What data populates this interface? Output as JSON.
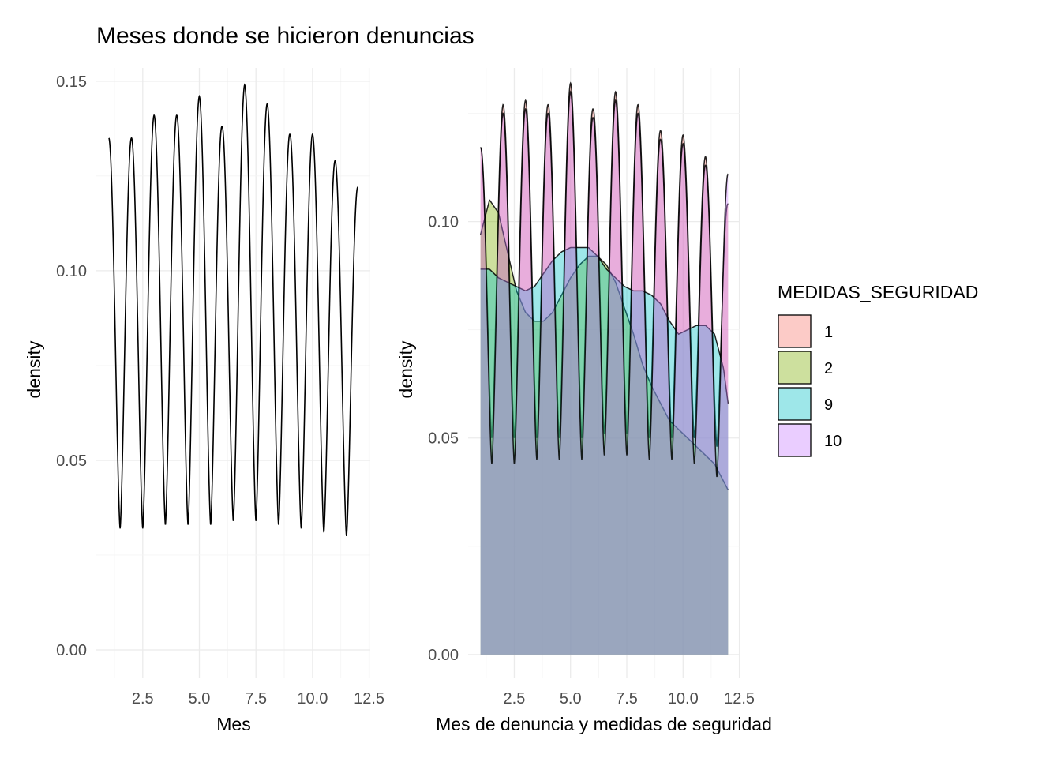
{
  "page": {
    "title": "Meses donde se hicieron denuncias"
  },
  "chart_data": [
    {
      "type": "line",
      "title": "Meses donde se hicieron denuncias",
      "xlabel": "Mes",
      "ylabel": "density",
      "xlim": [
        0.45,
        12.55
      ],
      "ylim": [
        -0.0075,
        0.1535
      ],
      "x_ticks": [
        2.5,
        5.0,
        7.5,
        10.0,
        12.5
      ],
      "x_tick_labels": [
        "2.5",
        "5.0",
        "7.5",
        "10.0",
        "12.5"
      ],
      "y_ticks": [
        0.0,
        0.05,
        0.1,
        0.15
      ],
      "y_tick_labels": [
        "0.00",
        "0.05",
        "0.10",
        "0.15"
      ],
      "grid": true,
      "series": [
        {
          "peaks_x": [
            1,
            2,
            3,
            4,
            5,
            6,
            7,
            8,
            9,
            10,
            11,
            12
          ],
          "peaks_y": [
            0.135,
            0.135,
            0.141,
            0.141,
            0.146,
            0.138,
            0.149,
            0.144,
            0.136,
            0.136,
            0.129,
            0.122
          ],
          "troughs_x": [
            1.5,
            2.5,
            3.5,
            4.5,
            5.5,
            6.5,
            7.5,
            8.5,
            9.5,
            10.5,
            11.5
          ],
          "troughs_y": [
            0.032,
            0.032,
            0.033,
            0.033,
            0.033,
            0.034,
            0.034,
            0.033,
            0.032,
            0.031,
            0.03
          ]
        }
      ]
    },
    {
      "type": "area",
      "xlabel": "Mes de denuncia y medidas de seguridad",
      "ylabel": "density",
      "xlim": [
        0.45,
        12.55
      ],
      "ylim": [
        -0.0055,
        0.1355
      ],
      "x_ticks": [
        2.5,
        5.0,
        7.5,
        10.0,
        12.5
      ],
      "x_tick_labels": [
        "2.5",
        "5.0",
        "7.5",
        "10.0",
        "12.5"
      ],
      "y_ticks": [
        0.0,
        0.05,
        0.1
      ],
      "y_tick_labels": [
        "0.00",
        "0.05",
        "0.10"
      ],
      "grid": true,
      "legend": {
        "title": "MEDIDAS_SEGURIDAD",
        "position": "right",
        "entries": [
          {
            "label": "1",
            "color": "#F8766D"
          },
          {
            "label": "2",
            "color": "#7CAE00"
          },
          {
            "label": "9",
            "color": "#00BFC4"
          },
          {
            "label": "10",
            "color": "#C77CFF"
          }
        ]
      },
      "series": [
        {
          "name": "1",
          "color": "#F8766D",
          "peaks_x": [
            1,
            2,
            3,
            4,
            5,
            6,
            7,
            8,
            9,
            10,
            11,
            12
          ],
          "peaks_y": [
            0.117,
            0.127,
            0.128,
            0.127,
            0.132,
            0.126,
            0.13,
            0.127,
            0.121,
            0.12,
            0.115,
            0.104
          ],
          "troughs_x": [
            1.5,
            2.5,
            3.5,
            4.5,
            5.5,
            6.5,
            7.5,
            8.5,
            9.5,
            10.5,
            11.5
          ],
          "troughs_y": [
            0.05,
            0.05,
            0.05,
            0.05,
            0.05,
            0.051,
            0.051,
            0.05,
            0.05,
            0.05,
            0.048
          ]
        },
        {
          "name": "2",
          "color": "#7CAE00",
          "x": [
            1,
            1.4,
            1.8,
            2.2,
            2.6,
            3.0,
            3.4,
            3.8,
            4.2,
            4.6,
            5.0,
            5.4,
            5.8,
            6.2,
            6.6,
            7.0,
            7.4,
            7.8,
            8.2,
            8.6,
            9.0,
            9.4,
            9.8,
            10.2,
            10.6,
            11.0,
            11.4,
            11.8,
            12
          ],
          "y": [
            0.097,
            0.105,
            0.102,
            0.093,
            0.084,
            0.079,
            0.077,
            0.077,
            0.079,
            0.083,
            0.087,
            0.09,
            0.092,
            0.092,
            0.09,
            0.086,
            0.08,
            0.074,
            0.067,
            0.062,
            0.058,
            0.054,
            0.052,
            0.05,
            0.048,
            0.046,
            0.044,
            0.04,
            0.038
          ]
        },
        {
          "name": "9",
          "color": "#00BFC4",
          "x": [
            1,
            1.4,
            1.8,
            2.2,
            2.6,
            3.0,
            3.4,
            3.8,
            4.2,
            4.6,
            5.0,
            5.4,
            5.8,
            6.2,
            6.6,
            7.0,
            7.4,
            7.8,
            8.2,
            8.6,
            9.0,
            9.4,
            9.8,
            10.2,
            10.6,
            11.0,
            11.4,
            11.8,
            12
          ],
          "y": [
            0.089,
            0.089,
            0.087,
            0.086,
            0.085,
            0.084,
            0.085,
            0.088,
            0.091,
            0.093,
            0.094,
            0.094,
            0.094,
            0.092,
            0.089,
            0.087,
            0.085,
            0.084,
            0.084,
            0.083,
            0.081,
            0.077,
            0.074,
            0.075,
            0.076,
            0.076,
            0.074,
            0.066,
            0.058
          ]
        },
        {
          "name": "10",
          "color": "#C77CFF",
          "x": [
            1,
            1.4,
            1.8,
            2.2,
            2.6,
            3.0,
            3.4,
            3.8,
            4.2,
            4.6,
            5.0,
            5.4,
            5.8,
            6.2,
            6.6,
            7.0,
            7.4,
            7.8,
            8.2,
            8.6,
            9.0,
            9.4,
            9.8,
            10.2,
            10.6,
            11.0,
            11.4,
            11.8,
            12
          ],
          "peaks_x": [
            1,
            2,
            3,
            4,
            5,
            6,
            7,
            8,
            9,
            10,
            11,
            12
          ],
          "peaks_y": [
            0.117,
            0.125,
            0.126,
            0.125,
            0.13,
            0.124,
            0.128,
            0.125,
            0.119,
            0.118,
            0.113,
            0.111
          ],
          "troughs_x": [
            1.5,
            2.5,
            3.5,
            4.5,
            5.5,
            6.5,
            7.5,
            8.5,
            9.5,
            10.5,
            11.5
          ],
          "troughs_y": [
            0.044,
            0.044,
            0.045,
            0.045,
            0.045,
            0.046,
            0.046,
            0.045,
            0.045,
            0.044,
            0.041
          ]
        }
      ]
    }
  ]
}
